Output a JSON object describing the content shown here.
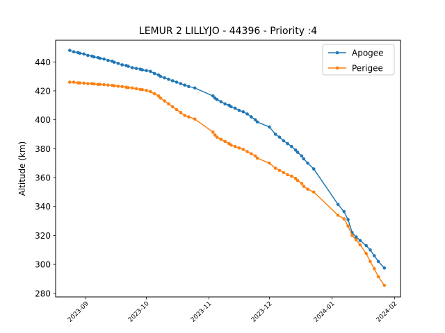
{
  "chart_data": {
    "type": "line",
    "title": "LEMUR 2 LILLYJO - 44396 - Priority :4",
    "xlabel": "",
    "ylabel": "Altitude (km)",
    "xlim": [
      "2023-08-17",
      "2024-02-04"
    ],
    "ylim": [
      277.5,
      455
    ],
    "x_ticks": [
      "2023-09-01",
      "2023-10-01",
      "2023-11-01",
      "2023-12-01",
      "2024-01-01",
      "2024-02-01"
    ],
    "x_tick_labels": [
      "2023-09",
      "2023-10",
      "2023-11",
      "2023-12",
      "2024-01",
      "2024-02"
    ],
    "y_ticks": [
      280,
      300,
      320,
      340,
      360,
      380,
      400,
      420,
      440
    ],
    "grid": false,
    "legend_position": "top-right",
    "series": [
      {
        "name": "Apogee",
        "color": "#1f77b4",
        "x": [
          "2023-08-24",
          "2023-08-26",
          "2023-08-28",
          "2023-08-29",
          "2023-08-31",
          "2023-09-02",
          "2023-09-04",
          "2023-09-05",
          "2023-09-07",
          "2023-09-08",
          "2023-09-10",
          "2023-09-12",
          "2023-09-14",
          "2023-09-15",
          "2023-09-17",
          "2023-09-19",
          "2023-09-21",
          "2023-09-22",
          "2023-09-24",
          "2023-09-26",
          "2023-09-28",
          "2023-09-29",
          "2023-10-01",
          "2023-10-03",
          "2023-10-05",
          "2023-10-07",
          "2023-10-08",
          "2023-10-10",
          "2023-10-12",
          "2023-10-14",
          "2023-10-16",
          "2023-10-18",
          "2023-10-20",
          "2023-10-22",
          "2023-10-25",
          "2023-11-03",
          "2023-11-04",
          "2023-11-05",
          "2023-11-07",
          "2023-11-09",
          "2023-11-11",
          "2023-11-12",
          "2023-11-14",
          "2023-11-16",
          "2023-11-18",
          "2023-11-20",
          "2023-11-22",
          "2023-11-24",
          "2023-11-25",
          "2023-12-01",
          "2023-12-04",
          "2023-12-06",
          "2023-12-08",
          "2023-12-10",
          "2023-12-12",
          "2023-12-14",
          "2023-12-15",
          "2023-12-17",
          "2023-12-18",
          "2023-12-20",
          "2023-12-23",
          "2024-01-04",
          "2024-01-07",
          "2024-01-09",
          "2024-01-11",
          "2024-01-13",
          "2024-01-15",
          "2024-01-18",
          "2024-01-20",
          "2024-01-22",
          "2024-01-24",
          "2024-01-27"
        ],
        "values": [
          448,
          447,
          446.5,
          446,
          445.5,
          444.5,
          444,
          443.5,
          443,
          442.5,
          442,
          441,
          440.5,
          439.8,
          439,
          438,
          437.5,
          437,
          436,
          435.5,
          435,
          434.5,
          434,
          433.5,
          432,
          431,
          430,
          429,
          428,
          427,
          426,
          425,
          424,
          423,
          422,
          416.5,
          415,
          414,
          412.5,
          411,
          410,
          409,
          408,
          406.5,
          405.5,
          404,
          402,
          400,
          398.5,
          395,
          390,
          388,
          385.5,
          383.5,
          381.5,
          379,
          377.5,
          375,
          373,
          370,
          366,
          341.5,
          336.5,
          331,
          322,
          319,
          316.5,
          313,
          310,
          306,
          302,
          297.5
        ]
      },
      {
        "name": "Perigee",
        "color": "#ff7f0e",
        "x": [
          "2023-08-24",
          "2023-08-26",
          "2023-08-28",
          "2023-08-29",
          "2023-08-31",
          "2023-09-02",
          "2023-09-04",
          "2023-09-05",
          "2023-09-07",
          "2023-09-08",
          "2023-09-10",
          "2023-09-12",
          "2023-09-14",
          "2023-09-15",
          "2023-09-17",
          "2023-09-19",
          "2023-09-21",
          "2023-09-22",
          "2023-09-24",
          "2023-09-26",
          "2023-09-28",
          "2023-09-29",
          "2023-10-01",
          "2023-10-03",
          "2023-10-05",
          "2023-10-07",
          "2023-10-08",
          "2023-10-10",
          "2023-10-12",
          "2023-10-14",
          "2023-10-16",
          "2023-10-18",
          "2023-10-20",
          "2023-10-22",
          "2023-10-25",
          "2023-11-03",
          "2023-11-04",
          "2023-11-05",
          "2023-11-07",
          "2023-11-09",
          "2023-11-11",
          "2023-11-12",
          "2023-11-14",
          "2023-11-16",
          "2023-11-18",
          "2023-11-20",
          "2023-11-22",
          "2023-11-24",
          "2023-11-25",
          "2023-12-01",
          "2023-12-04",
          "2023-12-06",
          "2023-12-08",
          "2023-12-10",
          "2023-12-12",
          "2023-12-14",
          "2023-12-15",
          "2023-12-17",
          "2023-12-18",
          "2023-12-20",
          "2023-12-23",
          "2024-01-04",
          "2024-01-07",
          "2024-01-09",
          "2024-01-11",
          "2024-01-13",
          "2024-01-15",
          "2024-01-18",
          "2024-01-20",
          "2024-01-22",
          "2024-01-24",
          "2024-01-27"
        ],
        "values": [
          426,
          426,
          425.5,
          425.5,
          425.3,
          425,
          425,
          424.8,
          424.5,
          424.5,
          424.3,
          424,
          423.8,
          423.5,
          423.2,
          423,
          422.5,
          422.2,
          422,
          421.5,
          421,
          420.8,
          420.3,
          419.5,
          418,
          416.5,
          415,
          413,
          411,
          409,
          407,
          405,
          403,
          402,
          400.5,
          391.5,
          389.5,
          388,
          386.5,
          385,
          383.5,
          382.5,
          381.5,
          380.5,
          379.5,
          378,
          376.5,
          375,
          373.5,
          370,
          366.5,
          365,
          363.5,
          362,
          361,
          359.5,
          358,
          356,
          354,
          352,
          350,
          334,
          331.5,
          326.5,
          320,
          317,
          313.5,
          307.5,
          302,
          297,
          291.5,
          285.5
        ]
      }
    ]
  }
}
